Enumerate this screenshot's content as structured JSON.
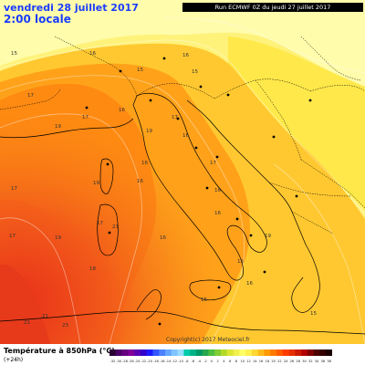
{
  "header": {
    "date": "vendredi 28 juillet 2017",
    "time": "2:00 locale",
    "run": "Run ECMWF 0Z du jeudi 27 juillet 2017"
  },
  "copyright": "Copyright(c) 2017 Meteociel.fr",
  "legend": {
    "title": "Température à 850hPa (°C)",
    "subtitle": "(+24h)",
    "ticks": [
      "-32",
      "-30",
      "-28",
      "-26",
      "-24",
      "-22",
      "-20",
      "-18",
      "-16",
      "-14",
      "-12",
      "-10",
      "-8",
      "-6",
      "-4",
      "-2",
      "0",
      "2",
      "4",
      "6",
      "8",
      "10",
      "12",
      "14",
      "16",
      "18",
      "20",
      "22",
      "24",
      "26",
      "28",
      "30",
      "32",
      "34",
      "36",
      "38"
    ],
    "colors": [
      "#2a0033",
      "#4b0066",
      "#66007f",
      "#7f0099",
      "#5a00b3",
      "#3300cc",
      "#1a1aff",
      "#3355ff",
      "#4d80ff",
      "#66a6ff",
      "#80c4ff",
      "#99ddff",
      "#00ccaa",
      "#00b386",
      "#009966",
      "#26a64d",
      "#4dbf40",
      "#80cc33",
      "#b3d926",
      "#d9e633",
      "#f2f04d",
      "#ffff66",
      "#fff04d",
      "#ffd633",
      "#ffbb1a",
      "#ff9900",
      "#ff7a00",
      "#ff5c00",
      "#ff3d00",
      "#e62e00",
      "#cc1a00",
      "#b30000",
      "#800000",
      "#4d0000",
      "#330000",
      "#1a0000"
    ]
  },
  "map_labels": [
    {
      "text": "15"
    },
    {
      "text": "16"
    },
    {
      "text": "15"
    },
    {
      "text": "16"
    },
    {
      "text": "15"
    },
    {
      "text": "17"
    },
    {
      "text": "17"
    },
    {
      "text": "19"
    },
    {
      "text": "17"
    },
    {
      "text": "16"
    },
    {
      "text": "19"
    },
    {
      "text": "17"
    },
    {
      "text": "19"
    },
    {
      "text": "16"
    },
    {
      "text": "16"
    },
    {
      "text": "17"
    },
    {
      "text": "16"
    },
    {
      "text": "16"
    },
    {
      "text": "17"
    },
    {
      "text": "21"
    },
    {
      "text": "17"
    },
    {
      "text": "19"
    },
    {
      "text": "16"
    },
    {
      "text": "21"
    },
    {
      "text": "21"
    },
    {
      "text": "23"
    },
    {
      "text": "18"
    },
    {
      "text": "15"
    },
    {
      "text": "15"
    },
    {
      "text": "16"
    },
    {
      "text": "15"
    },
    {
      "text": "16"
    },
    {
      "text": "19"
    }
  ]
}
